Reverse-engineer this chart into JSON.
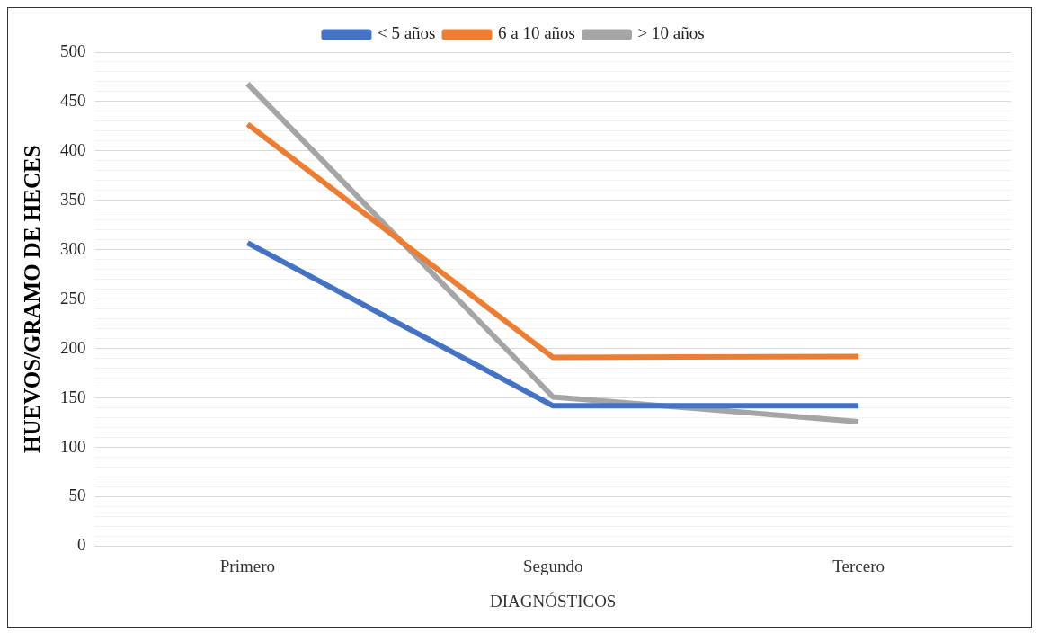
{
  "chart_data": {
    "type": "line",
    "xlabel": "DIAGNÓSTICOS",
    "ylabel": "HUEVOS/GRAMO DE HECES",
    "categories": [
      "Primero",
      "Segundo",
      "Tercero"
    ],
    "series": [
      {
        "name": "< 5 años",
        "color": "#4472c4",
        "values": [
          307,
          142,
          142
        ]
      },
      {
        "name": "6 a 10 años",
        "color": "#ed7d31",
        "values": [
          427,
          191,
          192
        ]
      },
      {
        "name": "> 10 años",
        "color": "#a5a5a5",
        "values": [
          468,
          151,
          126
        ]
      }
    ],
    "ylim": [
      0,
      500
    ],
    "yticks": [
      0,
      {
        "value": 10,
        "label": null
      },
      {
        "value": 20,
        "label": null
      },
      {
        "value": 30,
        "label": null
      },
      {
        "value": 40,
        "label": null
      },
      50,
      {
        "value": 60,
        "label": null
      },
      {
        "value": 70,
        "label": null
      },
      {
        "value": 80,
        "label": null
      },
      {
        "value": 90,
        "label": null
      },
      100,
      {
        "value": 110,
        "label": null
      },
      {
        "value": 120,
        "label": null
      },
      {
        "value": 130,
        "label": null
      },
      {
        "value": 140,
        "label": null
      },
      150,
      {
        "value": 160,
        "label": null
      },
      {
        "value": 170,
        "label": null
      },
      {
        "value": 180,
        "label": null
      },
      {
        "value": 190,
        "label": null
      },
      200,
      {
        "value": 210,
        "label": null
      },
      {
        "value": 220,
        "label": null
      },
      {
        "value": 230,
        "label": null
      },
      {
        "value": 240,
        "label": null
      },
      250,
      {
        "value": 260,
        "label": null
      },
      {
        "value": 270,
        "label": null
      },
      {
        "value": 280,
        "label": null
      },
      {
        "value": 290,
        "label": null
      },
      300,
      {
        "value": 310,
        "label": null
      },
      {
        "value": 320,
        "label": null
      },
      {
        "value": 330,
        "label": null
      },
      {
        "value": 340,
        "label": null
      },
      350,
      {
        "value": 360,
        "label": null
      },
      {
        "value": 370,
        "label": null
      },
      {
        "value": 380,
        "label": null
      },
      {
        "value": 390,
        "label": null
      },
      400,
      {
        "value": 410,
        "label": null
      },
      {
        "value": 420,
        "label": null
      },
      {
        "value": 430,
        "label": null
      },
      {
        "value": 440,
        "label": null
      },
      450,
      {
        "value": 460,
        "label": null
      },
      {
        "value": 470,
        "label": null
      },
      {
        "value": 480,
        "label": null
      },
      {
        "value": 490,
        "label": null
      },
      500
    ],
    "grid": "y",
    "legend": "top",
    "marker": "none",
    "line_style": "solid"
  }
}
